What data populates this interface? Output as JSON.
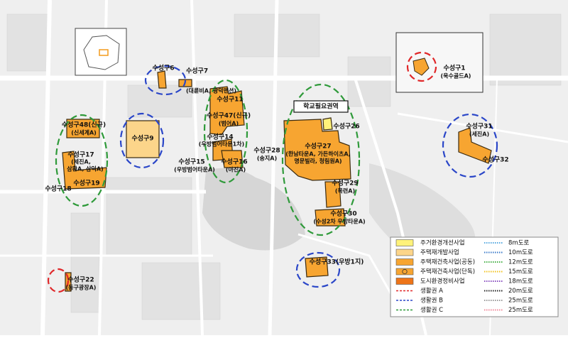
{
  "zones": [
    {
      "name": "수성구6"
    },
    {
      "name": "수성구7",
      "note": "(대륜비A, 광덕맨션)"
    },
    {
      "name": "수성구11"
    },
    {
      "name": "수성구47(신규)",
      "note": "(범어A)"
    },
    {
      "name": "수성구14",
      "note": "(우방범어타운1차)"
    },
    {
      "name": "수성구15",
      "note": "(우방범어타운A)"
    },
    {
      "name": "수성구16",
      "note": "(아진A)"
    },
    {
      "name": "수성구9"
    },
    {
      "name": "수성구48(신규)",
      "note": "(신세계A)"
    },
    {
      "name": "수성구17",
      "note": "(세진A,",
      "note2": "삼환A, 삼익A)"
    },
    {
      "name": "수성구18"
    },
    {
      "name": "수성구19"
    },
    {
      "name": "수성구22",
      "note": "(동구광장A)"
    },
    {
      "name": "수성구26"
    },
    {
      "name": "수성구27",
      "note": "(한남타운A, 가든하이츠A,",
      "note2": "명문빌라, 청림원A)"
    },
    {
      "name": "수성구28",
      "note": "(송지A)"
    },
    {
      "name": "수성구29",
      "note": "(목련A)"
    },
    {
      "name": "수성구30",
      "note": "(수성2차 우방타운A)"
    },
    {
      "name": "수성구33(우방1지)"
    },
    {
      "name": "수성구31",
      "note": "(세진A)"
    },
    {
      "name": "수성구32"
    },
    {
      "name": "수성구1",
      "note": "(욱수골드A)"
    }
  ],
  "school_zone": "학교필요권역",
  "legend": {
    "areas": [
      {
        "label": "주거환경개선사업",
        "color": "#fff27a"
      },
      {
        "label": "주택재개발사업",
        "color": "#fcd58a"
      },
      {
        "label": "주택재건축사업(공동)",
        "color": "#f7a531"
      },
      {
        "label": "주택재건축사업(단독)",
        "color": "#f7a531"
      },
      {
        "label": "도시환경정비사업",
        "color": "#ee7418"
      }
    ],
    "rings": [
      {
        "label": "생활권 A",
        "color": "#e0282a"
      },
      {
        "label": "생활권 B",
        "color": "#2a46c8"
      },
      {
        "label": "생활권 C",
        "color": "#2f9a3a"
      }
    ],
    "roads": [
      {
        "label": "8m도로",
        "color": "#56a8e0"
      },
      {
        "label": "10m도로",
        "color": "#3a78c8"
      },
      {
        "label": "12m도로",
        "color": "#49b04a"
      },
      {
        "label": "15m도로",
        "color": "#f2c21b"
      },
      {
        "label": "18m도로",
        "color": "#8a4fc0"
      },
      {
        "label": "20m도로",
        "color": "#222222"
      },
      {
        "label": "25m도로",
        "color": "#9a9a9a"
      },
      {
        "label": "25m도로",
        "color": "#f08a9a"
      }
    ]
  }
}
